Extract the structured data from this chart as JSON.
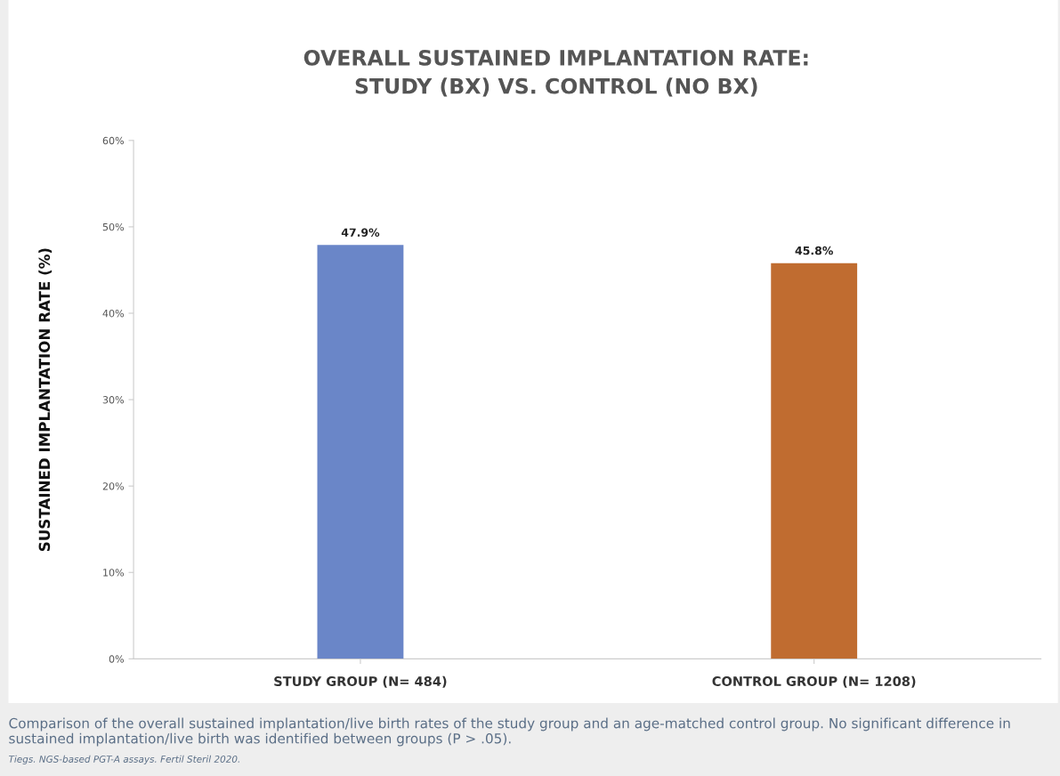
{
  "chart_data": {
    "type": "bar",
    "title": "OVERALL SUSTAINED IMPLANTATION RATE:\nSTUDY (BX) VS. CONTROL (NO BX)",
    "ylabel": "SUSTAINED IMPLANTATION RATE (%)",
    "categories": [
      "STUDY GROUP (N= 484)",
      "CONTROL GROUP (N= 1208)"
    ],
    "values": [
      47.9,
      45.8
    ],
    "colors": [
      "#6a86c8",
      "#c06c30"
    ],
    "value_labels": [
      "47.9%",
      "45.8%"
    ],
    "ylim": [
      0,
      60
    ],
    "yticks": [
      {
        "value": 0,
        "label": "0%"
      },
      {
        "value": 10,
        "label": "10%"
      },
      {
        "value": 20,
        "label": "20%"
      },
      {
        "value": 30,
        "label": "30%"
      },
      {
        "value": 40,
        "label": "40%"
      },
      {
        "value": 50,
        "label": "50%"
      },
      {
        "value": 60,
        "label": "60%"
      }
    ],
    "grid": false,
    "annotations": [
      "Comparison of the overall sustained implantation/live birth rates of the study group and an age-matched control group. No significant difference in sustained implantation/live birth was identified between groups (P > .05).",
      "Tiegs. NGS-based PGT-A assays. Fertil Steril 2020."
    ]
  }
}
